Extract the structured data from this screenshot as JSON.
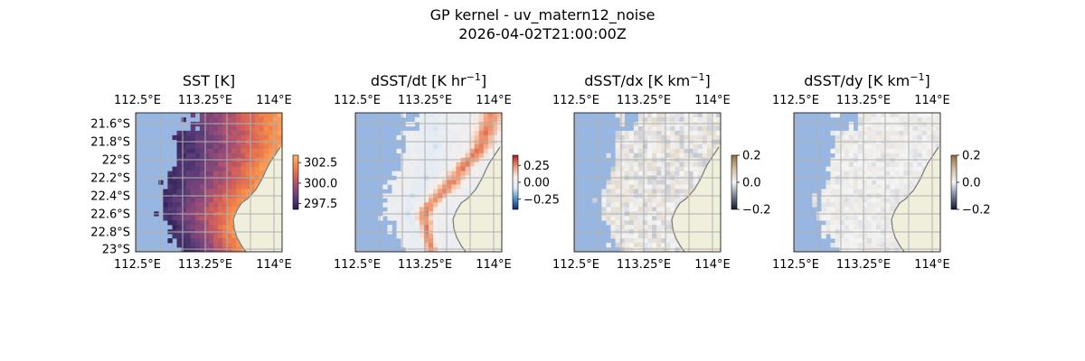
{
  "figure": {
    "title_line1": "GP kernel - uv_matern12_noise",
    "title_line2": "2026-04-02T21:00:00Z"
  },
  "colors": {
    "ocean": "#97b6e1",
    "land": "#efefdb",
    "coast": "#7f7f7f",
    "grid": "#b0b0b0"
  },
  "chart_data": [
    {
      "type": "heatmap",
      "title": "SST [K]",
      "title_unit_sup": "",
      "x_ticks": [
        "112.5°E",
        "113.25°E",
        "114°E"
      ],
      "y_ticks": [
        "21.6°S",
        "21.8°S",
        "22°S",
        "22.2°S",
        "22.4°S",
        "22.6°S",
        "22.8°S",
        "23°S"
      ],
      "xlim": [
        112.5,
        114.1
      ],
      "ylim": [
        -23.05,
        -21.55
      ],
      "colormap": "plasma-like (purple to orange)",
      "colorbar": {
        "ticks": [
          "297.5",
          "300.0",
          "302.5"
        ],
        "range": [
          296.8,
          303.4
        ]
      },
      "field": "SST west-to-east gradient, ~298 K in west to ~302.5 K near coast"
    },
    {
      "type": "heatmap",
      "title": "dSST/dt [K hr",
      "title_unit_sup": "−1",
      "x_ticks": [
        "112.5°E",
        "113.25°E",
        "114°E"
      ],
      "y_ticks": [],
      "xlim": [
        112.5,
        114.1
      ],
      "ylim": [
        -23.05,
        -21.55
      ],
      "colormap": "RdBu_r (blue-white-red)",
      "colorbar": {
        "ticks": [
          "0.25",
          "0.00",
          "−0.25"
        ],
        "range": [
          -0.4,
          0.4
        ]
      },
      "field": "diverging; positive band along NE, weak negative patches west"
    },
    {
      "type": "heatmap",
      "title": "dSST/dx [K km",
      "title_unit_sup": "−1",
      "x_ticks": [
        "112.5°E",
        "113.25°E",
        "114°E"
      ],
      "y_ticks": [],
      "xlim": [
        112.5,
        114.1
      ],
      "ylim": [
        -23.05,
        -21.55
      ],
      "colormap": "diverging (dark blue-white-brown)",
      "colorbar": {
        "ticks": [
          "0.2",
          "0.0",
          "−0.2"
        ],
        "range": [
          -0.2,
          0.2
        ]
      },
      "field": "near zero everywhere, slight brownish streaks"
    },
    {
      "type": "heatmap",
      "title": "dSST/dy [K km",
      "title_unit_sup": "−1",
      "x_ticks": [
        "112.5°E",
        "113.25°E",
        "114°E"
      ],
      "y_ticks": [],
      "xlim": [
        112.5,
        114.1
      ],
      "ylim": [
        -23.05,
        -21.55
      ],
      "colormap": "diverging (dark blue-white-brown)",
      "colorbar": {
        "ticks": [
          "0.2",
          "0.0",
          "−0.2"
        ],
        "range": [
          -0.2,
          0.2
        ]
      },
      "field": "near zero everywhere, very pale"
    }
  ]
}
